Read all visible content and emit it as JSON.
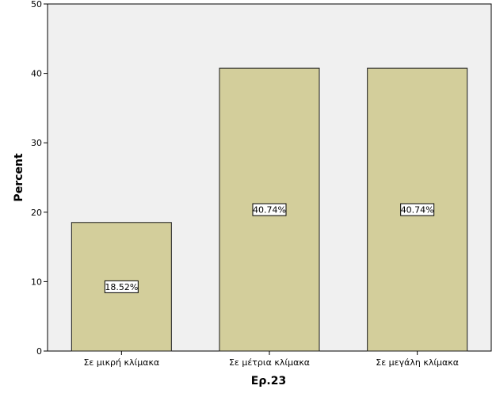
{
  "chart_data": {
    "type": "bar",
    "categories": [
      "Σε μικρή κλίμακα",
      "Σε μέτρια κλίμακα",
      "Σε μεγάλη κλίμακα"
    ],
    "values": [
      18.52,
      40.74,
      40.74
    ],
    "data_labels": [
      "18.52%",
      "40.74%",
      "40.74%"
    ],
    "xlabel": "Ερ.23",
    "ylabel": "Percent",
    "ylim": [
      0,
      50
    ],
    "yticks": [
      0,
      10,
      20,
      30,
      40,
      50
    ],
    "grid": false,
    "colors": {
      "plot_background": "#f0f0f0",
      "bar_fill": "#d3ce9b",
      "bar_stroke": "#1a1a1a"
    }
  }
}
